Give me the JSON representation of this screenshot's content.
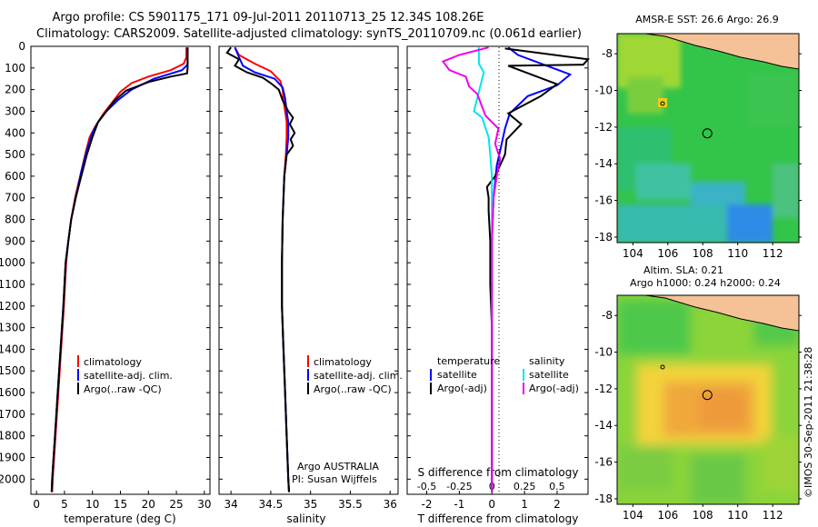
{
  "title": {
    "line1": "Argo profile: CS 5901175_171 09-Jul-2011 20110713_25 12.34S 108.26E",
    "line2": "Climatology: CARS2009. Satellite-adjusted climatology: synTS_20110709.nc (0.061d earlier)"
  },
  "colors": {
    "climatology": "#ff0000",
    "satellite": "#0000ff",
    "argo": "#000000",
    "sal_satellite": "#00e5ee",
    "sal_argo": "#ee00ee"
  },
  "depth_axis": {
    "ticks": [
      0,
      100,
      200,
      300,
      400,
      500,
      600,
      700,
      800,
      900,
      1000,
      1100,
      1200,
      1300,
      1400,
      1500,
      1600,
      1700,
      1800,
      1900,
      2000
    ],
    "range": [
      0,
      2070
    ]
  },
  "chart_data": [
    {
      "type": "line",
      "name": "temperature-profile",
      "xlabel": "temperature (deg C)",
      "xlim": [
        -1,
        31
      ],
      "xticks": [
        0,
        5,
        10,
        15,
        20,
        25,
        30
      ],
      "ylim": [
        0,
        2070
      ],
      "legend": [
        "climatology",
        "satellite-adj. clim.",
        "Argo(..raw -QC)"
      ],
      "series": [
        {
          "name": "climatology",
          "color": "#ff0000",
          "points": [
            [
              26.8,
              5
            ],
            [
              26.8,
              50
            ],
            [
              26.3,
              80
            ],
            [
              24,
              110
            ],
            [
              20,
              140
            ],
            [
              17,
              170
            ],
            [
              15,
              210
            ],
            [
              13.5,
              260
            ],
            [
              12,
              310
            ],
            [
              10.5,
              370
            ],
            [
              9.5,
              420
            ],
            [
              8.7,
              500
            ],
            [
              7.8,
              600
            ],
            [
              6.9,
              700
            ],
            [
              6.2,
              800
            ],
            [
              5.7,
              900
            ],
            [
              5.3,
              1000
            ],
            [
              4.9,
              1200
            ],
            [
              4.4,
              1400
            ],
            [
              3.9,
              1600
            ],
            [
              3.4,
              1800
            ],
            [
              2.9,
              2000
            ],
            [
              2.8,
              2060
            ]
          ]
        },
        {
          "name": "satellite",
          "color": "#0000ff",
          "points": [
            [
              27,
              5
            ],
            [
              27,
              50
            ],
            [
              27,
              85
            ],
            [
              26,
              110
            ],
            [
              21,
              150
            ],
            [
              17,
              200
            ],
            [
              14.5,
              250
            ],
            [
              12.5,
              300
            ],
            [
              11,
              350
            ],
            [
              10,
              400
            ],
            [
              9,
              480
            ],
            [
              8,
              580
            ],
            [
              7,
              700
            ],
            [
              6.2,
              800
            ],
            [
              5.7,
              900
            ],
            [
              5.2,
              1000
            ],
            [
              4.8,
              1200
            ],
            [
              4.3,
              1400
            ],
            [
              3.8,
              1600
            ],
            [
              3.3,
              1800
            ],
            [
              2.8,
              2000
            ],
            [
              2.7,
              2060
            ]
          ]
        },
        {
          "name": "argo",
          "color": "#000000",
          "points": [
            [
              27,
              5
            ],
            [
              27,
              100
            ],
            [
              26.9,
              125
            ],
            [
              24,
              140
            ],
            [
              20,
              165
            ],
            [
              16,
              205
            ],
            [
              14,
              250
            ],
            [
              12.5,
              300
            ],
            [
              11,
              350
            ],
            [
              10,
              420
            ],
            [
              9,
              500
            ],
            [
              8,
              600
            ],
            [
              7,
              700
            ],
            [
              6.2,
              800
            ],
            [
              5.7,
              900
            ],
            [
              5.2,
              1000
            ],
            [
              4.8,
              1200
            ],
            [
              4.3,
              1400
            ],
            [
              3.8,
              1600
            ],
            [
              3.3,
              1800
            ],
            [
              2.8,
              2000
            ],
            [
              2.7,
              2060
            ]
          ]
        }
      ]
    },
    {
      "type": "line",
      "name": "salinity-profile",
      "xlabel": "salinity",
      "xlim": [
        33.85,
        36.1
      ],
      "xticks": [
        34,
        34.5,
        35,
        35.5,
        36
      ],
      "ylim": [
        0,
        2070
      ],
      "legend": [
        "climatology",
        "satellite-adj. clim.",
        "Argo(..raw -QC)"
      ],
      "annotation": [
        "Argo AUSTRALIA",
        "PI: Susan Wijffels"
      ],
      "series": [
        {
          "name": "climatology",
          "color": "#ff0000",
          "points": [
            [
              34.05,
              5
            ],
            [
              34.1,
              40
            ],
            [
              34.3,
              80
            ],
            [
              34.5,
              115
            ],
            [
              34.62,
              160
            ],
            [
              34.65,
              200
            ],
            [
              34.66,
              250
            ],
            [
              34.68,
              300
            ],
            [
              34.7,
              350
            ],
            [
              34.7,
              420
            ],
            [
              34.69,
              500
            ],
            [
              34.67,
              600
            ],
            [
              34.65,
              800
            ],
            [
              34.64,
              1000
            ],
            [
              34.64,
              1200
            ],
            [
              34.66,
              1400
            ],
            [
              34.68,
              1600
            ],
            [
              34.7,
              1800
            ],
            [
              34.72,
              2000
            ],
            [
              34.73,
              2060
            ]
          ]
        },
        {
          "name": "satellite",
          "color": "#0000ff",
          "points": [
            [
              34.05,
              5
            ],
            [
              34.1,
              50
            ],
            [
              34.15,
              90
            ],
            [
              34.3,
              120
            ],
            [
              34.55,
              150
            ],
            [
              34.65,
              190
            ],
            [
              34.68,
              240
            ],
            [
              34.7,
              300
            ],
            [
              34.72,
              350
            ],
            [
              34.72,
              420
            ],
            [
              34.7,
              500
            ],
            [
              34.67,
              600
            ],
            [
              34.65,
              800
            ],
            [
              34.64,
              1000
            ],
            [
              34.64,
              1200
            ],
            [
              34.66,
              1400
            ],
            [
              34.68,
              1600
            ],
            [
              34.7,
              1800
            ],
            [
              34.72,
              2000
            ],
            [
              34.73,
              2060
            ]
          ]
        },
        {
          "name": "argo",
          "color": "#000000",
          "points": [
            [
              34.0,
              5
            ],
            [
              33.95,
              30
            ],
            [
              34.1,
              60
            ],
            [
              34.05,
              90
            ],
            [
              34.2,
              120
            ],
            [
              34.4,
              145
            ],
            [
              34.5,
              170
            ],
            [
              34.6,
              200
            ],
            [
              34.65,
              250
            ],
            [
              34.72,
              300
            ],
            [
              34.78,
              330
            ],
            [
              34.74,
              360
            ],
            [
              34.8,
              400
            ],
            [
              34.75,
              430
            ],
            [
              34.78,
              460
            ],
            [
              34.7,
              500
            ],
            [
              34.67,
              600
            ],
            [
              34.65,
              800
            ],
            [
              34.64,
              1000
            ],
            [
              34.64,
              1200
            ],
            [
              34.66,
              1400
            ],
            [
              34.68,
              1600
            ],
            [
              34.7,
              1800
            ],
            [
              34.72,
              2000
            ],
            [
              34.73,
              2060
            ]
          ]
        }
      ]
    },
    {
      "type": "line",
      "name": "difference-profile",
      "xlabel": "T difference from climatology",
      "xlabel_top": "S difference from climatology",
      "xlim": [
        -2.6,
        2.95
      ],
      "xticks": [
        -2,
        -1,
        0,
        1,
        2
      ],
      "sticks": [
        "-0.5",
        "-0.25",
        "0",
        "0.25",
        "0.5"
      ],
      "ylim": [
        0,
        2070
      ],
      "legend_headers": [
        "temperature",
        "salinity"
      ],
      "legend": [
        "satellite",
        "Argo(-adj)",
        "satellite",
        "Argo(-adj)"
      ],
      "series": [
        {
          "name": "T satellite",
          "color": "#0000ff",
          "points": [
            [
              0.5,
              5
            ],
            [
              0.8,
              40
            ],
            [
              2.4,
              130
            ],
            [
              2.0,
              180
            ],
            [
              1.1,
              230
            ],
            [
              0.55,
              310
            ],
            [
              0.4,
              380
            ],
            [
              0.3,
              450
            ],
            [
              0.15,
              550
            ],
            [
              0.05,
              700
            ],
            [
              0,
              900
            ],
            [
              0,
              1200
            ],
            [
              0,
              1600
            ],
            [
              0,
              2000
            ],
            [
              0,
              2060
            ]
          ]
        },
        {
          "name": "T argo",
          "color": "#000000",
          "points": [
            [
              0.4,
              10
            ],
            [
              2.95,
              60
            ],
            [
              2.8,
              85
            ],
            [
              0.5,
              90
            ],
            [
              2.0,
              175
            ],
            [
              1.5,
              230
            ],
            [
              0.5,
              310
            ],
            [
              0.9,
              360
            ],
            [
              0.45,
              430
            ],
            [
              0.4,
              500
            ],
            [
              0.1,
              600
            ],
            [
              -0.15,
              650
            ],
            [
              -0.1,
              700
            ],
            [
              -0.1,
              760
            ],
            [
              -0.05,
              900
            ],
            [
              -0.05,
              1100
            ],
            [
              0,
              1300
            ],
            [
              0,
              1600
            ],
            [
              0,
              1800
            ],
            [
              0,
              2060
            ]
          ]
        },
        {
          "name": "S satellite",
          "color": "#00e5ee",
          "points": [
            [
              -0.4,
              5
            ],
            [
              -0.4,
              80
            ],
            [
              -0.25,
              120
            ],
            [
              -0.55,
              300
            ],
            [
              -0.3,
              330
            ],
            [
              -0.1,
              420
            ],
            [
              -0.05,
              500
            ],
            [
              0,
              600
            ],
            [
              0,
              900
            ],
            [
              0,
              1200
            ],
            [
              0,
              1600
            ],
            [
              0,
              2000
            ],
            [
              0,
              2060
            ]
          ]
        },
        {
          "name": "S argo",
          "color": "#ee00ee",
          "points": [
            [
              -0.1,
              5
            ],
            [
              -1.0,
              40
            ],
            [
              -1.5,
              70
            ],
            [
              -1.3,
              110
            ],
            [
              -0.8,
              140
            ],
            [
              -0.7,
              185
            ],
            [
              -0.45,
              220
            ],
            [
              -0.2,
              320
            ],
            [
              0.2,
              380
            ],
            [
              0.1,
              450
            ],
            [
              0.25,
              520
            ],
            [
              0.15,
              600
            ],
            [
              0.05,
              700
            ],
            [
              0,
              900
            ],
            [
              0,
              1200
            ],
            [
              0,
              1600
            ],
            [
              0,
              2000
            ],
            [
              0,
              2060
            ]
          ]
        }
      ]
    },
    {
      "type": "heatmap",
      "name": "sst-map",
      "title": "AMSR-E SST: 26.6  Argo: 26.9",
      "xticks": [
        104,
        106,
        108,
        110,
        112
      ],
      "yticks": [
        -8,
        -10,
        -12,
        -14,
        -16,
        -18
      ],
      "xlim": [
        103.1,
        113.5
      ],
      "ylim": [
        -18.3,
        -6.9
      ],
      "float_marker": [
        108.26,
        -12.34
      ]
    },
    {
      "type": "heatmap",
      "name": "sla-map",
      "title": "Altim. SLA: 0.21",
      "subtitle": "Argo h1000: 0.24 h2000: 0.24",
      "xticks": [
        104,
        106,
        108,
        110,
        112
      ],
      "yticks": [
        -8,
        -10,
        -12,
        -14,
        -16,
        -18
      ],
      "xlim": [
        103.1,
        113.5
      ],
      "ylim": [
        -18.3,
        -6.9
      ],
      "float_marker": [
        108.26,
        -12.34
      ]
    }
  ],
  "footer": "©IMOS 30-Sep-2011 21:38:28"
}
